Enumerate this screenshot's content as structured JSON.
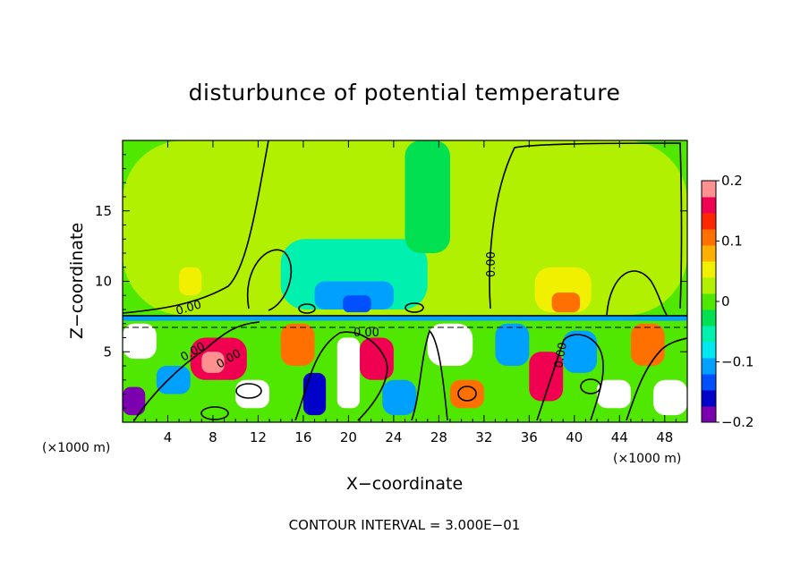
{
  "chart_data": {
    "type": "heatmap",
    "title": "disturbunce of potential temperature",
    "xlabel": "X−coordinate",
    "ylabel": "Z−coordinate",
    "x_unit_left": "(×1000 m)",
    "x_unit_right": "(×1000 m)",
    "xlim": [
      0,
      50
    ],
    "ylim": [
      0,
      20
    ],
    "x_ticks": [
      4,
      8,
      12,
      16,
      20,
      24,
      28,
      32,
      36,
      40,
      44,
      48
    ],
    "y_ticks": [
      5,
      10,
      15
    ],
    "colorbar": {
      "range": [
        -0.2,
        0.2
      ],
      "tick_values": [
        0.2,
        0.1,
        0,
        -0.1,
        -0.2
      ],
      "tick_labels": [
        "0.2",
        "0.1",
        "0",
        "−0.1",
        "−0.2"
      ],
      "colors": [
        "#7a00b0",
        "#0000c8",
        "#0050ff",
        "#00a0ff",
        "#00e8f0",
        "#00f0b0",
        "#00e050",
        "#50e800",
        "#b0f000",
        "#f0f000",
        "#ffb000",
        "#ff7000",
        "#ff2800",
        "#f00050",
        "#ff9090"
      ]
    },
    "contour_labels": [
      "0.00",
      "0.00",
      "0.00",
      "0.00",
      "0.00",
      "0.00"
    ],
    "annotation": "CONTOUR INTERVAL = 3.000E−01",
    "background_value": 0.0,
    "cells": [
      {
        "x": [
          0,
          50
        ],
        "z": [
          7.6,
          20
        ],
        "value": 0.02
      },
      {
        "x": [
          14,
          27
        ],
        "z": [
          8,
          13
        ],
        "value": -0.05
      },
      {
        "x": [
          17,
          24
        ],
        "z": [
          8,
          10
        ],
        "value": -0.1
      },
      {
        "x": [
          19.5,
          22
        ],
        "z": [
          7.8,
          9
        ],
        "value": -0.14
      },
      {
        "x": [
          36.5,
          41.5
        ],
        "z": [
          7.8,
          11
        ],
        "value": 0.06
      },
      {
        "x": [
          38,
          40.5
        ],
        "z": [
          7.8,
          9.2
        ],
        "value": 0.12
      },
      {
        "x": [
          5,
          7
        ],
        "z": [
          9,
          11
        ],
        "value": 0.05
      },
      {
        "x": [
          25,
          29
        ],
        "z": [
          12,
          20
        ],
        "value": -0.03
      },
      {
        "x": [
          0,
          50
        ],
        "z": [
          7.2,
          7.6
        ],
        "value": -0.12
      },
      {
        "x": [
          0,
          50
        ],
        "z": [
          0,
          7.2
        ],
        "value": 0.0
      },
      {
        "x": [
          0,
          3
        ],
        "z": [
          4.5,
          7
        ],
        "value": 0.3
      },
      {
        "x": [
          6,
          11
        ],
        "z": [
          3,
          6
        ],
        "value": 0.15
      },
      {
        "x": [
          7,
          9
        ],
        "z": [
          3.5,
          5
        ],
        "value": 0.2
      },
      {
        "x": [
          3,
          6
        ],
        "z": [
          2,
          4
        ],
        "value": -0.1
      },
      {
        "x": [
          10,
          13
        ],
        "z": [
          1,
          3
        ],
        "value": 0.3
      },
      {
        "x": [
          14,
          17
        ],
        "z": [
          4,
          7
        ],
        "value": 0.12
      },
      {
        "x": [
          16,
          18
        ],
        "z": [
          0.5,
          3.5
        ],
        "value": -0.15
      },
      {
        "x": [
          19,
          21
        ],
        "z": [
          1,
          6
        ],
        "value": 0.3
      },
      {
        "x": [
          21,
          24
        ],
        "z": [
          3,
          6
        ],
        "value": 0.15
      },
      {
        "x": [
          23,
          26
        ],
        "z": [
          0.5,
          3
        ],
        "value": -0.1
      },
      {
        "x": [
          27,
          31
        ],
        "z": [
          4,
          7
        ],
        "value": 0.3
      },
      {
        "x": [
          29,
          32
        ],
        "z": [
          1,
          3
        ],
        "value": 0.1
      },
      {
        "x": [
          33,
          36
        ],
        "z": [
          4,
          7
        ],
        "value": -0.12
      },
      {
        "x": [
          36,
          39
        ],
        "z": [
          1.5,
          5
        ],
        "value": 0.15
      },
      {
        "x": [
          39,
          42
        ],
        "z": [
          3.5,
          6.5
        ],
        "value": -0.1
      },
      {
        "x": [
          42,
          45
        ],
        "z": [
          1,
          3
        ],
        "value": 0.3
      },
      {
        "x": [
          45,
          48
        ],
        "z": [
          4,
          7
        ],
        "value": 0.12
      },
      {
        "x": [
          47,
          50
        ],
        "z": [
          0.5,
          3
        ],
        "value": 0.3
      },
      {
        "x": [
          0,
          2
        ],
        "z": [
          0.5,
          2.5
        ],
        "value": -0.2
      }
    ]
  }
}
